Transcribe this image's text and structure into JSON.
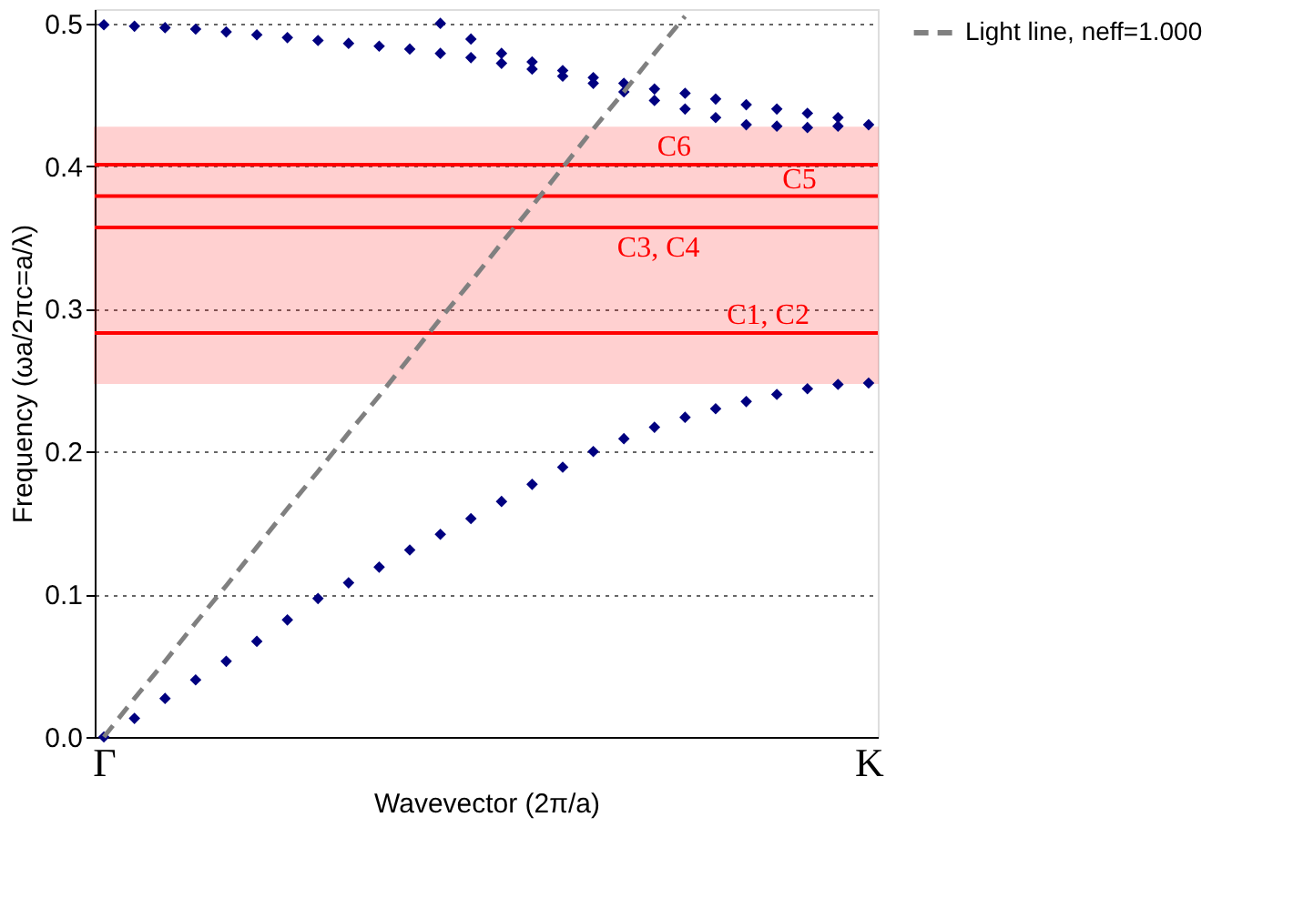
{
  "chart_data": {
    "type": "scatter",
    "xlabel": "Wavevector (2π/a)",
    "ylabel": "Frequency (ωa/2πc=a/λ)",
    "categories": [
      "Γ",
      null,
      null,
      null,
      null,
      null,
      null,
      null,
      null,
      null,
      null,
      null,
      null,
      null,
      null,
      null,
      null,
      null,
      null,
      null,
      null,
      null,
      null,
      null,
      null,
      "K"
    ],
    "ylim": [
      0,
      0.51
    ],
    "yticks": [
      {
        "value": 0,
        "label": "0.0"
      },
      {
        "value": 0.1,
        "label": "0.1"
      },
      {
        "value": 0.2,
        "label": "0.2"
      },
      {
        "value": 0.3,
        "label": "0.3"
      },
      {
        "value": 0.4,
        "label": "0.4"
      },
      {
        "value": 0.5,
        "label": "0.5"
      }
    ],
    "grid": "y",
    "legend": "top right",
    "marker": "diamond",
    "series": [
      {
        "color": "#000080",
        "values": [
          0,
          0.013,
          0.027,
          0.04,
          0.053,
          0.067,
          0.082,
          0.097,
          0.108,
          0.119,
          0.131,
          0.142,
          0.153,
          0.165,
          0.177,
          0.189,
          0.2,
          0.209,
          0.217,
          0.224,
          0.23,
          0.235,
          0.24,
          0.244,
          0.247,
          0.248
        ]
      },
      {
        "color": "#000080",
        "values": [
          0.499,
          0.498,
          0.497,
          0.496,
          0.494,
          0.492,
          0.49,
          0.488,
          0.486,
          0.484,
          0.482,
          0.479,
          0.476,
          0.472,
          0.468,
          0.463,
          0.458,
          0.452,
          0.446,
          0.44,
          0.434,
          0.429,
          0.428,
          0.427,
          0.428,
          0.429
        ]
      },
      {
        "color": "#000080",
        "values": [
          null,
          null,
          null,
          null,
          null,
          null,
          null,
          null,
          null,
          null,
          null,
          0.5,
          0.489,
          0.479,
          0.473,
          0.467,
          0.462,
          0.458,
          0.454,
          0.451,
          0.447,
          0.443,
          0.44,
          0.437,
          0.434,
          null
        ]
      },
      {
        "name": "Light line, neff=1.000",
        "type": "line",
        "line_style": "dashed",
        "marker": "none",
        "color": "#808080",
        "values": [
          0,
          0.027,
          0.053,
          0.08,
          0.106,
          0.133,
          0.16,
          0.186,
          0.213,
          0.239,
          0.266,
          0.293,
          0.319,
          0.346,
          0.372,
          0.399,
          0.426,
          0.452,
          0.479,
          0.505,
          null,
          null,
          null,
          null,
          null,
          null
        ]
      }
    ],
    "bands": [
      {
        "axis": "y",
        "from": 0.248,
        "to": 0.427,
        "color": "#ff0000"
      }
    ],
    "ref_lines": [
      {
        "axis": "y",
        "value": 0.283,
        "color": "#ff0000",
        "label": "C1, C2"
      },
      {
        "axis": "y",
        "value": 0.357,
        "color": "#ff0000",
        "label": "C3, C4"
      },
      {
        "axis": "y",
        "value": 0.379,
        "color": "#ff0000",
        "label": "C5"
      },
      {
        "axis": "y",
        "value": 0.401,
        "color": "#ff0000",
        "label": "C6"
      }
    ]
  }
}
